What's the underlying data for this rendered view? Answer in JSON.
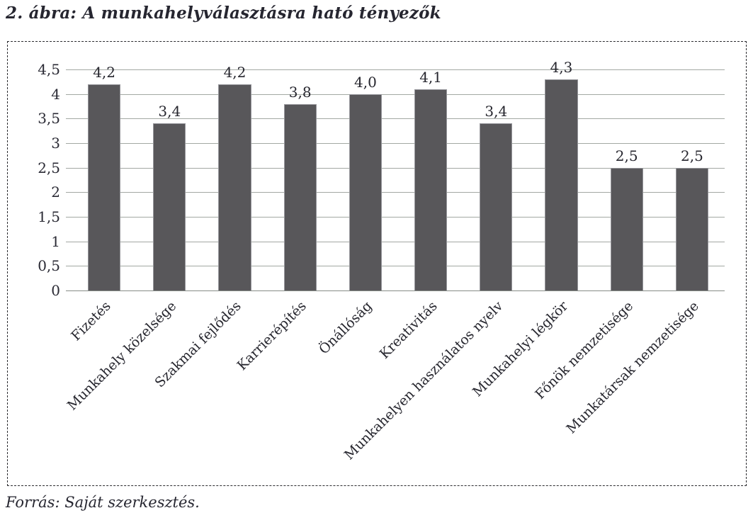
{
  "figure": {
    "title": "2. ábra: A munkahelyválasztásra ható tényezők",
    "source": "Forrás: Saját szerkesztés."
  },
  "chart_data": {
    "type": "bar",
    "title": "2. ábra: A munkahelyválasztásra ható tényezők",
    "xlabel": "",
    "ylabel": "",
    "categories": [
      "Fizetés",
      "Munkahely közelsége",
      "Szakmai fejlődés",
      "Karrierépítés",
      "Önállóság",
      "Kreativitás",
      "Munkahelyen használatos nyelv",
      "Munkahelyi légkör",
      "Főnök nemzetisége",
      "Munkatársak nemzetisége"
    ],
    "values": [
      4.2,
      3.4,
      4.2,
      3.8,
      4.0,
      4.1,
      3.4,
      4.3,
      2.5,
      2.5
    ],
    "value_labels": [
      "4,2",
      "3,4",
      "4,2",
      "3,8",
      "4,0",
      "4,1",
      "3,4",
      "4,3",
      "2,5",
      "2,5"
    ],
    "y_ticks": [
      {
        "value": 4.5,
        "label": "4,5"
      },
      {
        "value": 4.0,
        "label": "4"
      },
      {
        "value": 3.5,
        "label": "3,5"
      },
      {
        "value": 3.0,
        "label": "3"
      },
      {
        "value": 2.5,
        "label": "2,5"
      },
      {
        "value": 2.0,
        "label": "2"
      },
      {
        "value": 1.5,
        "label": "1,5"
      },
      {
        "value": 1.0,
        "label": "1"
      },
      {
        "value": 0.5,
        "label": "0,5"
      },
      {
        "value": 0.0,
        "label": "0"
      }
    ],
    "ylim": [
      0,
      4.5
    ],
    "grid": true,
    "legend_position": "none",
    "bar_color": "#58575a",
    "gridline_color": "#a3a8a3"
  }
}
